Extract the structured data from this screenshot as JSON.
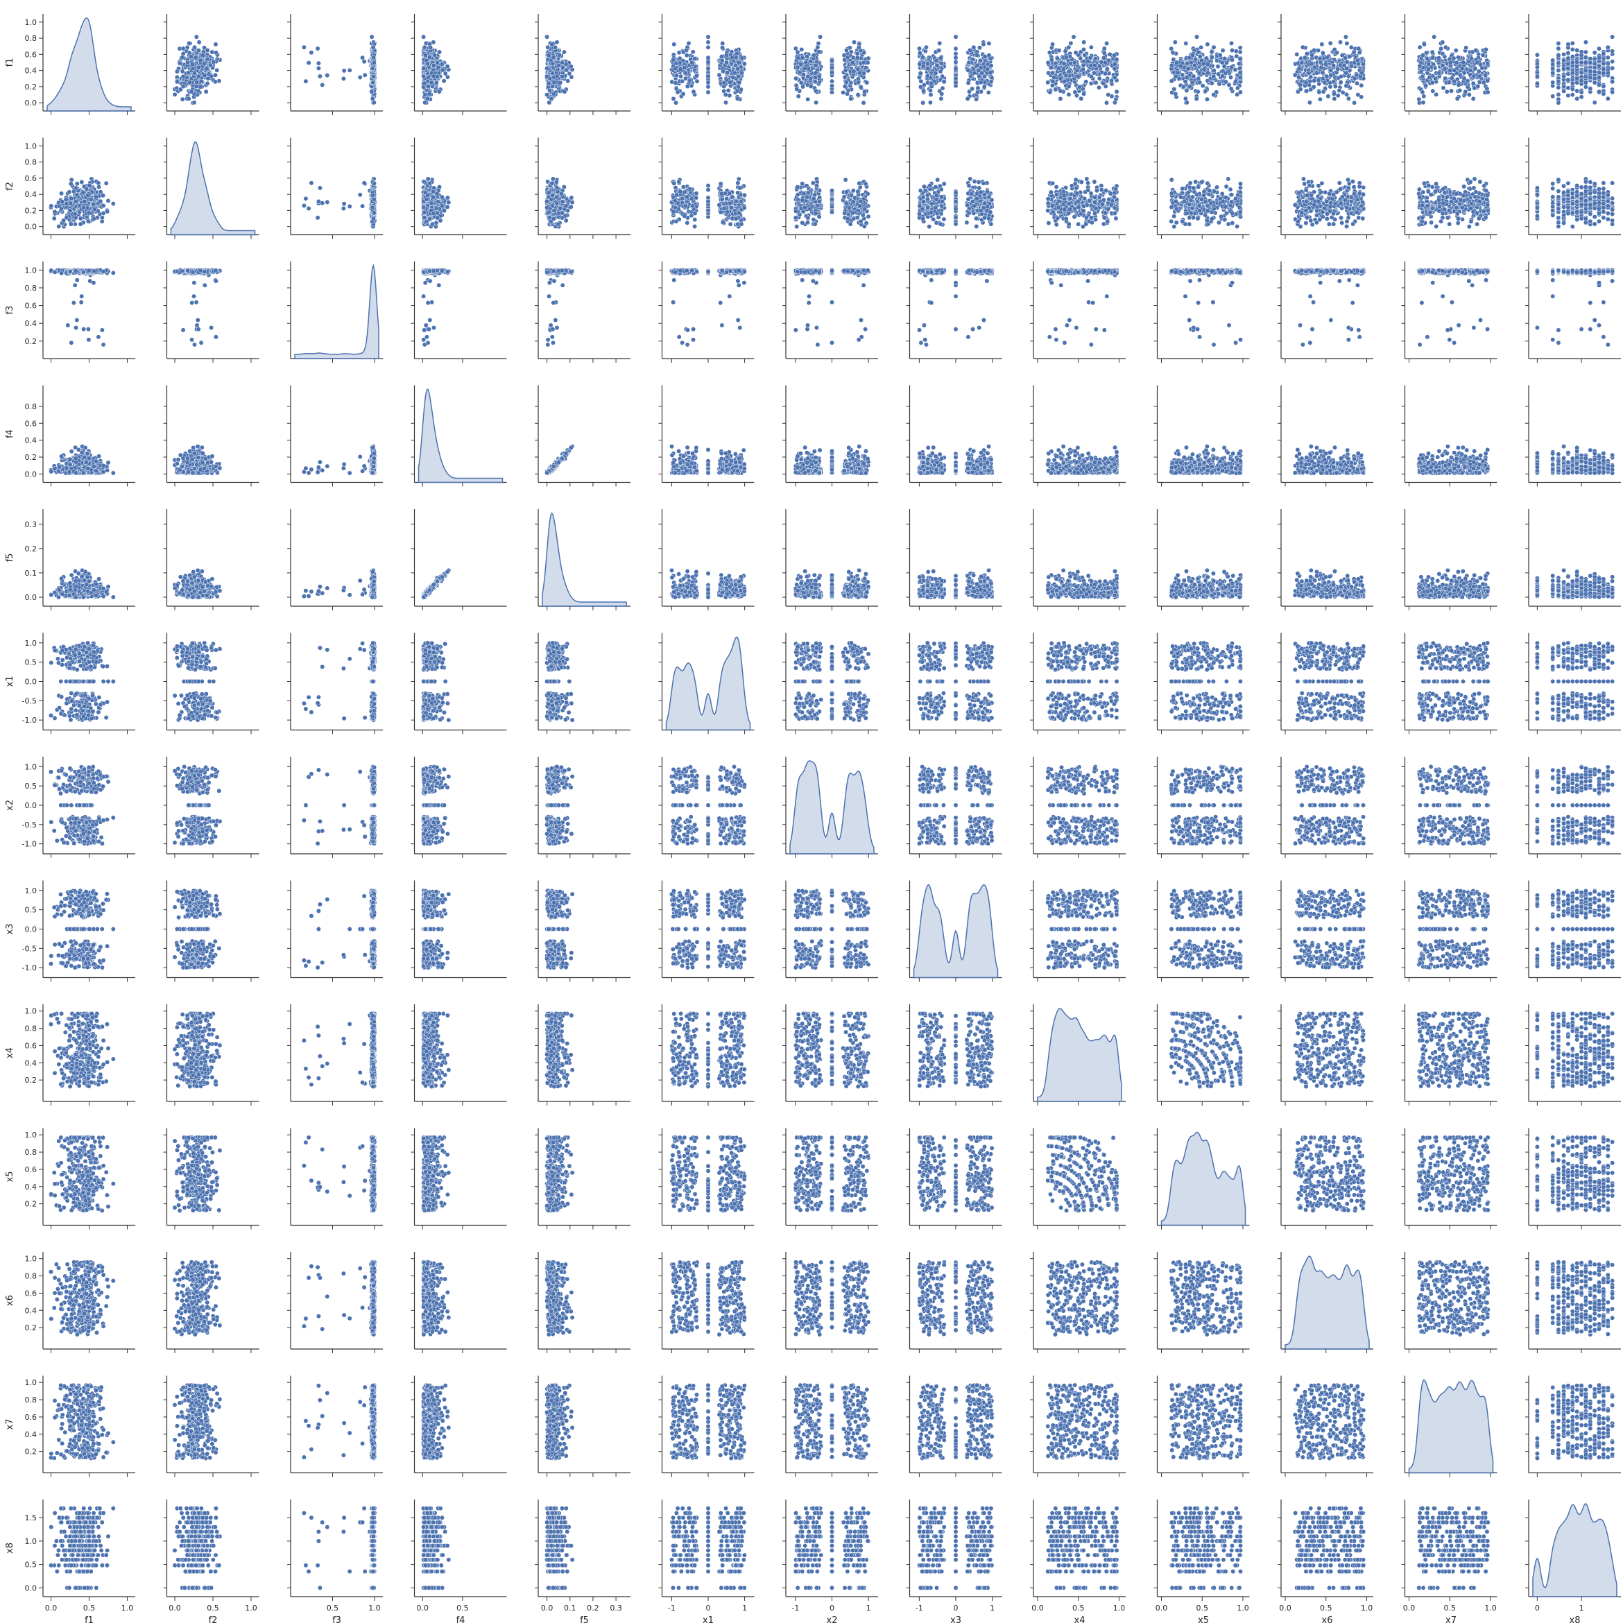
{
  "chart_data": {
    "type": "scatter",
    "layout": "pairplot",
    "variables": [
      "f1",
      "f2",
      "f3",
      "f4",
      "f5",
      "x1",
      "x2",
      "x3",
      "x4",
      "x5",
      "x6",
      "x7",
      "x8"
    ],
    "diagonal": "kde",
    "colors": {
      "marker": "#4c72b0",
      "marker_edge": "#ffffff",
      "axis": "#333333",
      "text": "#262626"
    },
    "ranges": {
      "f1": [
        -0.05,
        1.05
      ],
      "f2": [
        -0.05,
        1.05
      ],
      "f3": [
        0.05,
        1.05
      ],
      "f4": [
        -0.05,
        1.0
      ],
      "f5": [
        -0.02,
        0.345
      ],
      "x1": [
        -1.15,
        1.15
      ],
      "x2": [
        -1.15,
        1.15
      ],
      "x3": [
        -1.15,
        1.15
      ],
      "x4": [
        0.0,
        1.03
      ],
      "x5": [
        0.0,
        1.03
      ],
      "x6": [
        0.0,
        1.03
      ],
      "x7": [
        0.0,
        1.03
      ],
      "x8": [
        -0.1,
        1.8
      ]
    },
    "ticks": {
      "f1": [
        "0.0",
        "0.2",
        "0.4",
        "0.6",
        "0.8",
        "1.0"
      ],
      "f2": [
        "0.0",
        "0.2",
        "0.4",
        "0.6",
        "0.8",
        "1.0"
      ],
      "f3": [
        "0.2",
        "0.4",
        "0.6",
        "0.8",
        "1.0"
      ],
      "f4": [
        "0.0",
        "0.2",
        "0.4",
        "0.6",
        "0.8"
      ],
      "f5": [
        "0.0",
        "0.1",
        "0.2",
        "0.3"
      ],
      "x1": [
        "-1.0",
        "-0.5",
        "0.0",
        "0.5",
        "1.0"
      ],
      "x2": [
        "-1.0",
        "-0.5",
        "0.0",
        "0.5",
        "1.0"
      ],
      "x3": [
        "-1.0",
        "-0.5",
        "0.0",
        "0.5",
        "1.0"
      ],
      "x4": [
        "0.2",
        "0.4",
        "0.6",
        "0.8",
        "1.0"
      ],
      "x5": [
        "0.2",
        "0.4",
        "0.6",
        "0.8",
        "1.0"
      ],
      "x6": [
        "0.2",
        "0.4",
        "0.6",
        "0.8",
        "1.0"
      ],
      "x7": [
        "0.2",
        "0.4",
        "0.6",
        "0.8",
        "1.0"
      ],
      "x8": [
        "0.0",
        "0.5",
        "1.0",
        "1.5"
      ]
    },
    "x_tick_labels": {
      "f1": [
        "0.0",
        "0.5",
        "1.0"
      ],
      "f2": [
        "0.0",
        "0.5",
        "1.0"
      ],
      "f3": [
        "0.5",
        "1.0"
      ],
      "f4": [
        "0.0",
        "0.5"
      ],
      "f5": [
        "0.0",
        "0.1",
        "0.2",
        "0.3"
      ],
      "x1": [
        "-1",
        "0",
        "1"
      ],
      "x2": [
        "-1",
        "0",
        "1"
      ],
      "x3": [
        "-1",
        "0",
        "1"
      ],
      "x4": [
        "0.0",
        "0.5",
        "1.0"
      ],
      "x5": [
        "0.0",
        "0.5",
        "1.0"
      ],
      "x6": [
        "0.0",
        "0.5",
        "1.0"
      ],
      "x7": [
        "0.0",
        "0.5",
        "1.0"
      ],
      "x8": [
        "0",
        "1"
      ]
    },
    "x_tick_values": {
      "f1": [
        0,
        0.5,
        1
      ],
      "f2": [
        0,
        0.5,
        1
      ],
      "f3": [
        0.5,
        1
      ],
      "f4": [
        0,
        0.5
      ],
      "f5": [
        0,
        0.1,
        0.2,
        0.3
      ],
      "x1": [
        -1,
        0,
        1
      ],
      "x2": [
        -1,
        0,
        1
      ],
      "x3": [
        -1,
        0,
        1
      ],
      "x4": [
        0,
        0.5,
        1
      ],
      "x5": [
        0,
        0.5,
        1
      ],
      "x6": [
        0,
        0.5,
        1
      ],
      "x7": [
        0,
        0.5,
        1
      ],
      "x8": [
        0,
        1
      ]
    }
  }
}
